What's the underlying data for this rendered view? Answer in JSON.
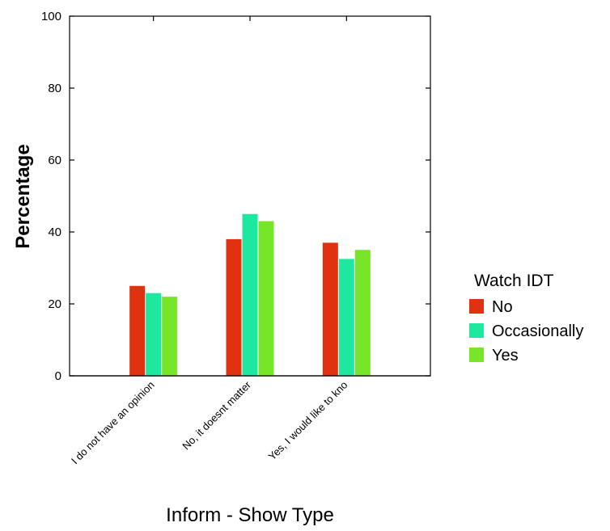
{
  "chart_data": {
    "type": "bar",
    "xlabel": "Inform - Show Type",
    "ylabel": "Percentage",
    "ylim": [
      0,
      100
    ],
    "yticks": [
      "0",
      "20",
      "40",
      "60",
      "80",
      "100"
    ],
    "categories": [
      "I do not have an opinion",
      "No, it doesnt matter",
      "Yes, I would like to kno"
    ],
    "legend": {
      "title": "Watch IDT",
      "placement": "right"
    },
    "series": [
      {
        "name": "No",
        "color": "#e03210",
        "values": [
          25,
          38,
          37
        ]
      },
      {
        "name": "Occasionally",
        "color": "#1ee8a0",
        "values": [
          23,
          45,
          32.5
        ]
      },
      {
        "name": "Yes",
        "color": "#78e628",
        "values": [
          22,
          43,
          35
        ]
      }
    ]
  }
}
